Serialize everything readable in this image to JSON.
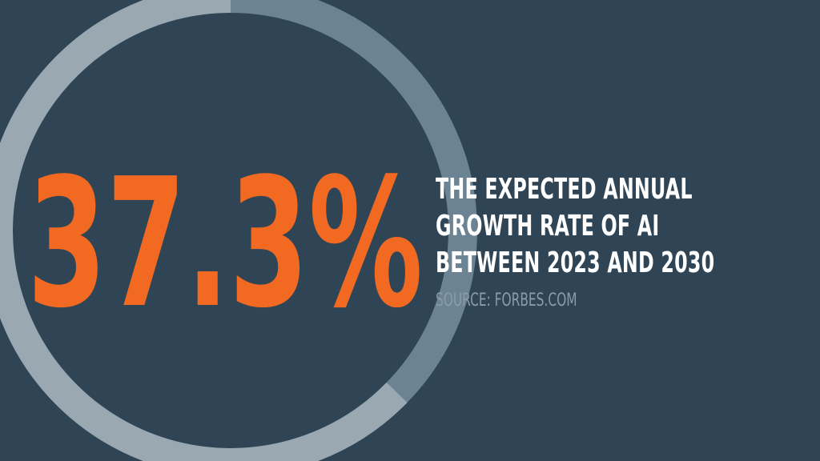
{
  "stat": {
    "value": "37.3%",
    "color": "#f26a21"
  },
  "headline": {
    "lines": [
      "THE EXPECTED ANNUAL",
      "GROWTH RATE OF AI",
      "BETWEEN 2023 AND 2030"
    ],
    "color": "#ffffff"
  },
  "source": "SOURCE: FORBES.COM",
  "ring": {
    "fraction": 0.627,
    "track_color": "#6b8393",
    "fill_color": "#9aa8b1"
  },
  "colors": {
    "background": "#2f4556"
  }
}
